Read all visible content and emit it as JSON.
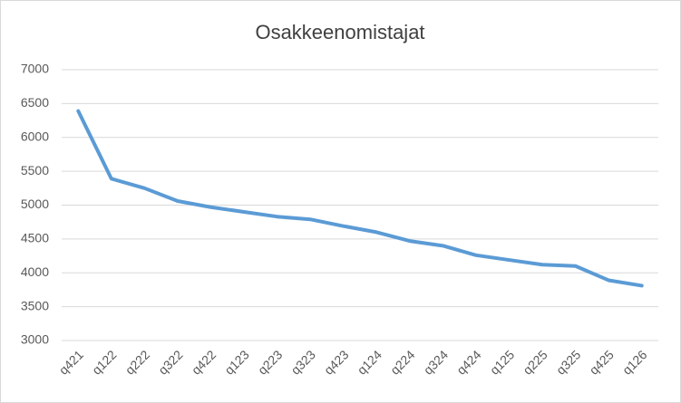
{
  "chart_data": {
    "type": "line",
    "title": "Osakkeenomistajat",
    "categories": [
      "q421",
      "q122",
      "q222",
      "q322",
      "q422",
      "q123",
      "q223",
      "q323",
      "q423",
      "q124",
      "q224",
      "q324",
      "q424",
      "q125",
      "q225",
      "q325",
      "q425",
      "q126"
    ],
    "values": [
      6390,
      5390,
      5250,
      5060,
      4970,
      4900,
      4830,
      4790,
      4690,
      4600,
      4470,
      4400,
      4260,
      4190,
      4120,
      4100,
      3890,
      3810
    ],
    "color": "#5b9bd5",
    "ylim": [
      3000,
      7000
    ],
    "yticks": [
      3000,
      3500,
      4000,
      4500,
      5000,
      5500,
      6000,
      6500,
      7000
    ],
    "grid": true
  }
}
